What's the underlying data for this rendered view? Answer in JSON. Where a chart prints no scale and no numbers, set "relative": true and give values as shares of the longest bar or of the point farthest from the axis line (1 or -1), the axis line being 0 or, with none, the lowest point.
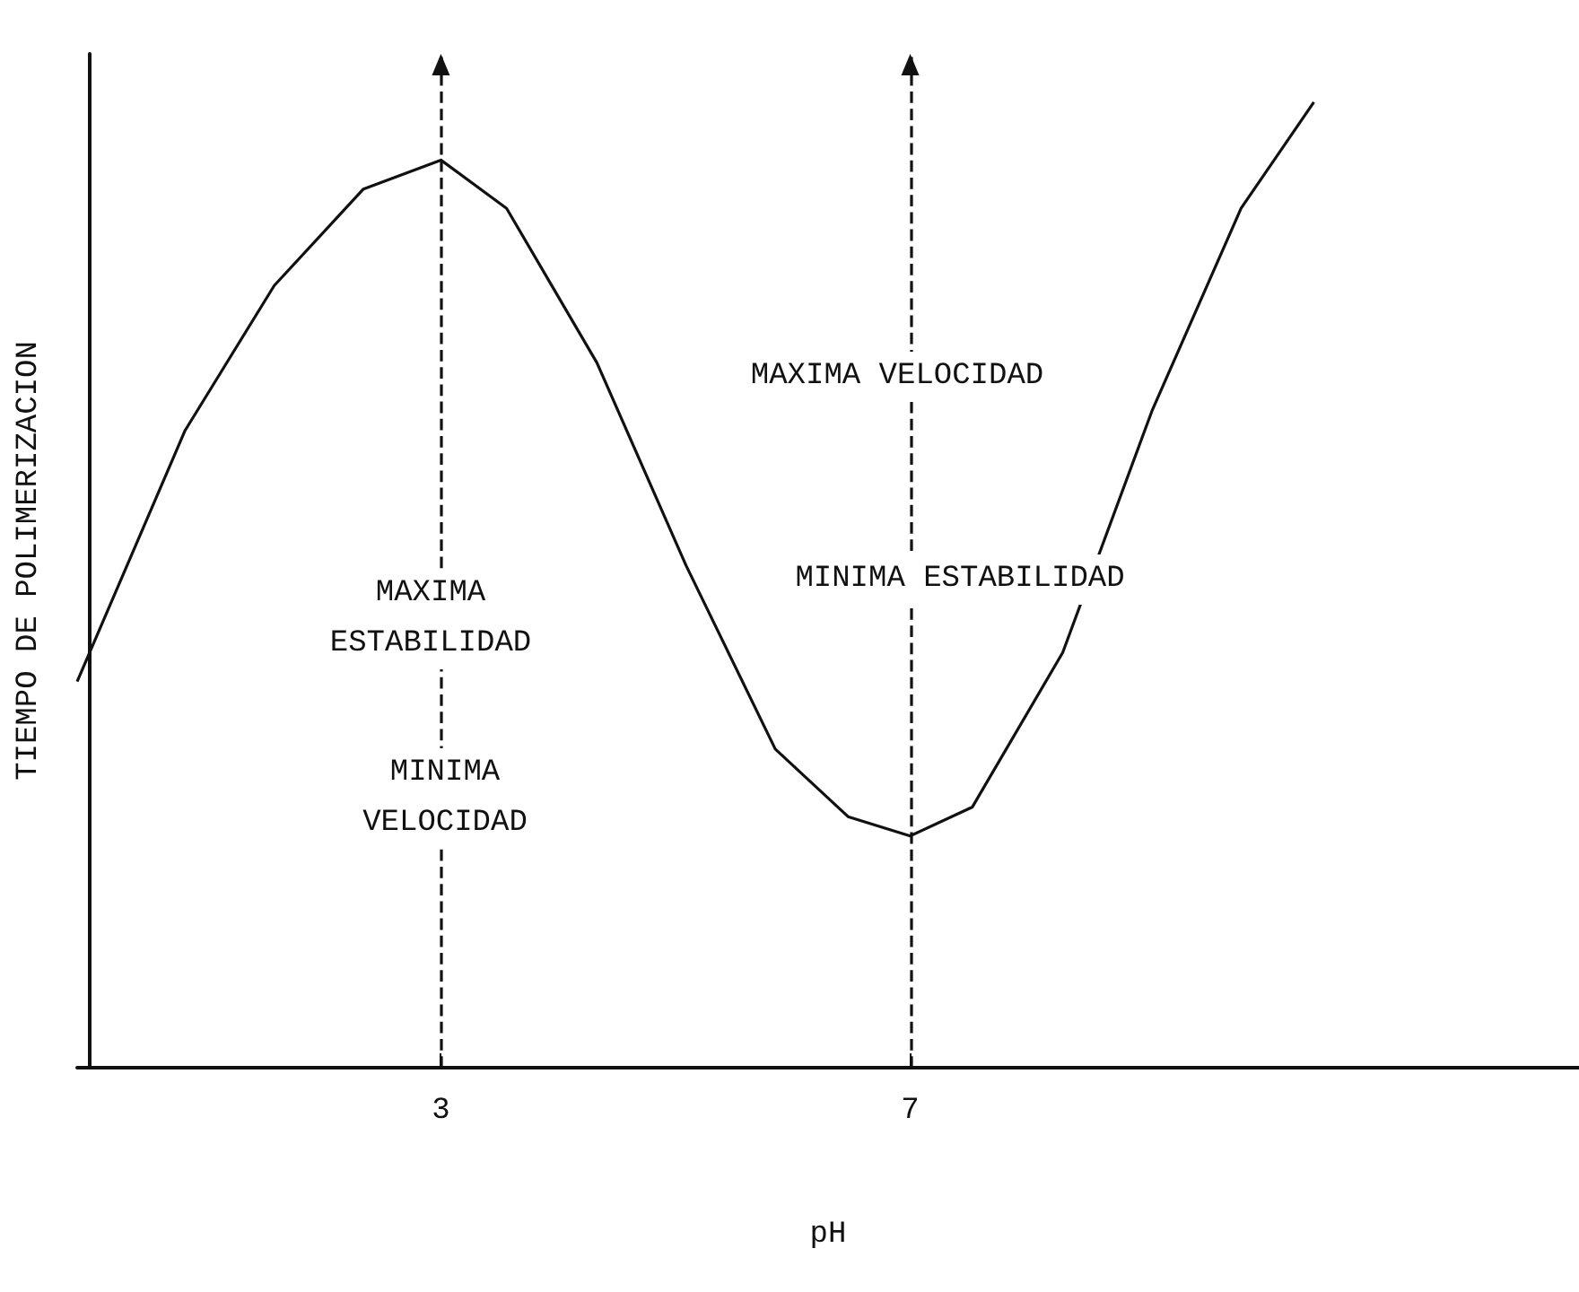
{
  "chart_data": {
    "type": "line",
    "relative": true,
    "xlabel": "pH",
    "ylabel": "TIEMPO DE POLIMERIZACION",
    "xlim": [
      -0.1,
      12.7
    ],
    "xticks": [
      3,
      7
    ],
    "grid": false,
    "marker": "none",
    "line_style": "solid",
    "series": [
      {
        "color": "#111111",
        "x": [
          -0.1,
          0.82,
          1.58,
          2.34,
          3,
          3.56,
          4.33,
          5.09,
          5.85,
          6.47,
          7,
          7.53,
          8.3,
          9.06,
          9.82,
          10.44
        ],
        "values": [
          0.4,
          0.66,
          0.81,
          0.91,
          0.94,
          0.89,
          0.73,
          0.52,
          0.33,
          0.26,
          0.24,
          0.27,
          0.43,
          0.68,
          0.89,
          1.0
        ]
      }
    ],
    "ref_lines": [
      {
        "axis": "x",
        "value": 3,
        "line_style": "dashed"
      },
      {
        "axis": "x",
        "value": 7,
        "line_style": "dashed"
      }
    ],
    "annotations": [
      "MAXIMA VELOCIDAD",
      "MINIMA ESTABILIDAD",
      "MAXIMA\nESTABILIDAD",
      "MINIMA\nVELOCIDAD"
    ]
  }
}
